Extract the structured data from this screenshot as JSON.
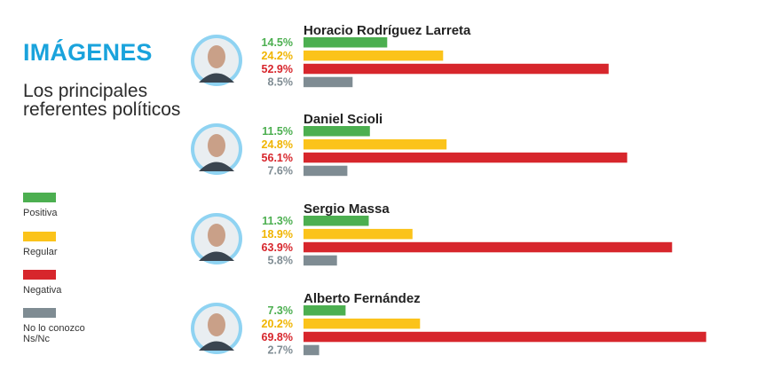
{
  "header": {
    "title": "IMÁGENES",
    "subtitle": "Los principales referentes políticos"
  },
  "legend": [
    {
      "label": "Positiva",
      "color": "#4caf50"
    },
    {
      "label": "Regular",
      "color": "#fbc31a"
    },
    {
      "label": "Negativa",
      "color": "#d7262c"
    },
    {
      "label": "No lo conozco Ns/Nc",
      "color": "#7f8c93"
    }
  ],
  "chart_data": {
    "type": "bar",
    "orientation": "horizontal",
    "title": "IMÁGENES",
    "subtitle": "Los principales referentes políticos",
    "series": [
      {
        "name": "Positiva",
        "color": "#4caf50"
      },
      {
        "name": "Regular",
        "color": "#fbc31a"
      },
      {
        "name": "Negativa",
        "color": "#d7262c"
      },
      {
        "name": "No lo conozco Ns/Nc",
        "color": "#7f8c93"
      }
    ],
    "groups": [
      {
        "name": "Horacio Rodríguez Larreta",
        "values": [
          14.5,
          24.2,
          52.9,
          8.5
        ],
        "labels": [
          "14.5%",
          "24.2%",
          "52.9%",
          "8.5%"
        ]
      },
      {
        "name": "Daniel Scioli",
        "values": [
          11.5,
          24.8,
          56.1,
          7.6
        ],
        "labels": [
          "11.5%",
          "24.8%",
          "56.1%",
          "7.6%"
        ]
      },
      {
        "name": "Sergio Massa",
        "values": [
          11.3,
          18.9,
          63.9,
          5.8
        ],
        "labels": [
          "11.3%",
          "18.9%",
          "63.9%",
          "5.8%"
        ]
      },
      {
        "name": "Alberto Fernández",
        "values": [
          7.3,
          20.2,
          69.8,
          2.7
        ],
        "labels": [
          "7.3%",
          "20.2%",
          "69.8%",
          "2.7%"
        ]
      }
    ],
    "label_colors": [
      "#4caf50",
      "#f0b400",
      "#d7262c",
      "#7f8c93"
    ]
  }
}
